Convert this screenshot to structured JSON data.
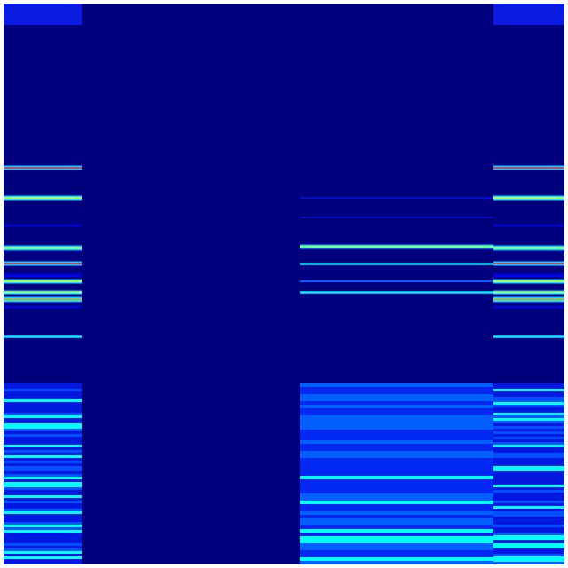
{
  "colormap": {
    "name": "jet",
    "background": "#00007f",
    "low": "#0000ff",
    "mid": "#00ffff",
    "high_mid": "#ffff00",
    "high": "#ff0000",
    "border": "#ffffff"
  }
}
